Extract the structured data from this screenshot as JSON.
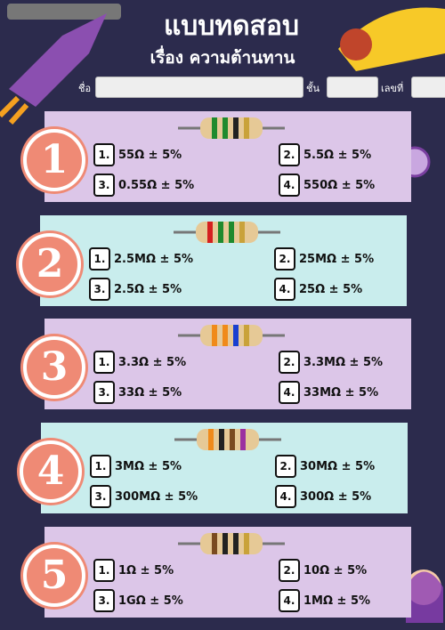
{
  "header": {
    "title": "แบบทดสอบ",
    "subtitle": "เรื่อง ความต้านทาน"
  },
  "fields": {
    "name": "ชื่อ",
    "class": "ชั้น",
    "number": "เลขที่"
  },
  "questions": [
    {
      "number": "1",
      "options": [
        {
          "number": "1.",
          "text": "55Ω ± 5%"
        },
        {
          "number": "2.",
          "text": "5.5Ω ± 5%"
        },
        {
          "number": "3.",
          "text": "0.55Ω ± 5%"
        },
        {
          "number": "4.",
          "text": "550Ω ± 5%"
        }
      ]
    },
    {
      "number": "2",
      "options": [
        {
          "number": "1.",
          "text": "2.5MΩ ± 5%"
        },
        {
          "number": "2.",
          "text": "25MΩ ± 5%"
        },
        {
          "number": "3.",
          "text": "2.5Ω ± 5%"
        },
        {
          "number": "4.",
          "text": "25Ω ± 5%"
        }
      ]
    },
    {
      "number": "3",
      "options": [
        {
          "number": "1.",
          "text": "3.3Ω ± 5%"
        },
        {
          "number": "2.",
          "text": "3.3MΩ ± 5%"
        },
        {
          "number": "3.",
          "text": "33Ω ± 5%"
        },
        {
          "number": "4.",
          "text": "33MΩ ± 5%"
        }
      ]
    },
    {
      "number": "4",
      "options": [
        {
          "number": "1.",
          "text": "3MΩ ± 5%"
        },
        {
          "number": "2.",
          "text": "30MΩ ± 5%"
        },
        {
          "number": "3.",
          "text": "300MΩ ± 5%"
        },
        {
          "number": "4.",
          "text": "300Ω ± 5%"
        }
      ]
    },
    {
      "number": "5",
      "options": [
        {
          "number": "1.",
          "text": "1Ω ± 5%"
        },
        {
          "number": "2.",
          "text": "10Ω ± 5%"
        },
        {
          "number": "3.",
          "text": "1GΩ ± 5%"
        },
        {
          "number": "4.",
          "text": "1MΩ ± 5%"
        }
      ]
    }
  ]
}
